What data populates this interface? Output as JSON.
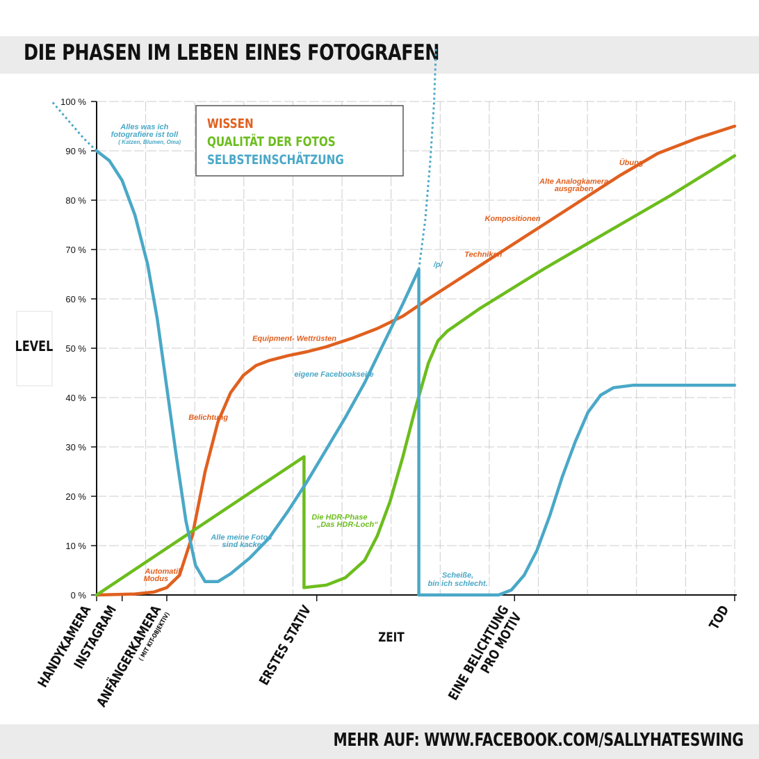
{
  "title": "DIE PHASEN IM LEBEN EINES FOTOGRAFEN",
  "footer": "MEHR AUF: WWW.FACEBOOK.COM/SALLYHATESWING",
  "colors": {
    "wissen": "#e0601f",
    "qualitaet": "#6cbd1d",
    "selbst": "#4aa8c7",
    "axis": "#111111",
    "grid": "#cccccc"
  },
  "chart_data": {
    "type": "line",
    "title": "DIE PHASEN IM LEBEN EINES FOTOGRAFEN",
    "xlabel": "ZEIT",
    "ylabel": "LEVEL",
    "ylim": [
      0,
      100
    ],
    "xlim": [
      0,
      100
    ],
    "yticks": [
      {
        "value": 0,
        "label": "0 %"
      },
      {
        "value": 10,
        "label": "10 %"
      },
      {
        "value": 20,
        "label": "20 %"
      },
      {
        "value": 30,
        "label": "30 %"
      },
      {
        "value": 40,
        "label": "40 %"
      },
      {
        "value": 50,
        "label": "50 %"
      },
      {
        "value": 60,
        "label": "60 %"
      },
      {
        "value": 70,
        "label": "70 %"
      },
      {
        "value": 80,
        "label": "80 %"
      },
      {
        "value": 90,
        "label": "90 %"
      },
      {
        "value": 100,
        "label": "100 %"
      }
    ],
    "xticks": [
      {
        "x": 0,
        "lines": [
          "HANDYKAMERA"
        ],
        "sub": ""
      },
      {
        "x": 4,
        "lines": [
          "INSTAGRAM"
        ],
        "sub": ""
      },
      {
        "x": 11,
        "lines": [
          "ANFÄNGERKAMERA"
        ],
        "sub": "( MIT KIT-OBJEKTIV)"
      },
      {
        "x": 34.5,
        "lines": [
          "ERSTES STATIV"
        ],
        "sub": ""
      },
      {
        "x": 65.5,
        "lines": [
          "EINE BELICHTUNG",
          "PRO MOTIV"
        ],
        "sub": ""
      },
      {
        "x": 100,
        "lines": [
          "TOD"
        ],
        "sub": ""
      }
    ],
    "legend": {
      "position": "top-left",
      "entries": [
        "WISSEN",
        "QUALITÄT DER FOTOS",
        "SELBSTEINSCHÄTZUNG"
      ]
    },
    "series": [
      {
        "name": "WISSEN",
        "points": [
          [
            0,
            0
          ],
          [
            6,
            0.2
          ],
          [
            9,
            0.6
          ],
          [
            11,
            1.5
          ],
          [
            13,
            4
          ],
          [
            15,
            12
          ],
          [
            17,
            25
          ],
          [
            19,
            35
          ],
          [
            21,
            41
          ],
          [
            23,
            44.5
          ],
          [
            25,
            46.5
          ],
          [
            27,
            47.5
          ],
          [
            30,
            48.5
          ],
          [
            33,
            49.3
          ],
          [
            36,
            50.3
          ],
          [
            40,
            52
          ],
          [
            44,
            54
          ],
          [
            48,
            56.5
          ],
          [
            52,
            60
          ],
          [
            58,
            65
          ],
          [
            64,
            70
          ],
          [
            70,
            75
          ],
          [
            76,
            80
          ],
          [
            82,
            85
          ],
          [
            88,
            89.5
          ],
          [
            94,
            92.5
          ],
          [
            100,
            95
          ]
        ]
      },
      {
        "name": "QUALITÄT DER FOTOS",
        "segments": [
          [
            [
              0,
              0
            ],
            [
              32.5,
              28
            ]
          ],
          [
            [
              32.5,
              28
            ],
            [
              32.5,
              1.5
            ]
          ],
          [
            [
              32.5,
              1.5
            ],
            [
              36,
              2
            ],
            [
              39,
              3.5
            ],
            [
              42,
              7
            ],
            [
              44,
              12
            ],
            [
              46,
              19
            ],
            [
              48,
              28
            ],
            [
              50,
              38
            ],
            [
              52,
              47
            ],
            [
              53.5,
              51.5
            ],
            [
              55,
              53.5
            ],
            [
              60,
              58
            ],
            [
              70,
              66
            ],
            [
              80,
              73.5
            ],
            [
              90,
              81
            ],
            [
              100,
              89
            ]
          ]
        ]
      },
      {
        "name": "SELBSTEINSCHÄTZUNG",
        "points": [
          [
            0,
            90
          ],
          [
            2,
            88
          ],
          [
            4,
            84
          ],
          [
            6,
            77
          ],
          [
            8,
            67
          ],
          [
            9.5,
            56
          ],
          [
            11,
            42
          ],
          [
            12.5,
            28
          ],
          [
            14,
            15
          ],
          [
            15.5,
            6
          ],
          [
            17,
            2.7
          ],
          [
            19,
            2.7
          ],
          [
            21,
            4.3
          ],
          [
            24,
            7.5
          ],
          [
            27,
            11.5
          ],
          [
            30,
            17
          ],
          [
            33,
            23
          ],
          [
            36,
            29.5
          ],
          [
            39,
            36
          ],
          [
            42,
            43
          ],
          [
            45,
            51
          ],
          [
            48,
            59
          ],
          [
            50.5,
            66
          ],
          [
            50.5,
            0
          ],
          [
            63,
            0
          ],
          [
            65,
            1
          ],
          [
            67,
            4
          ],
          [
            69,
            9
          ],
          [
            71,
            16
          ],
          [
            73,
            24
          ],
          [
            75,
            31
          ],
          [
            77,
            37
          ],
          [
            79,
            40.5
          ],
          [
            81,
            42
          ],
          [
            84,
            42.5
          ],
          [
            90,
            42.5
          ],
          [
            100,
            42.5
          ]
        ],
        "dotted_extensions": [
          [
            [
              0,
              90
            ],
            [
              -2,
              92.5
            ],
            [
              -4,
              95.5
            ],
            [
              -7,
              100
            ]
          ],
          [
            [
              50.5,
              66
            ],
            [
              51.5,
              76
            ],
            [
              52.3,
              88
            ],
            [
              52.9,
              100
            ],
            [
              53.2,
              111
            ]
          ]
        ]
      }
    ],
    "annotations": [
      {
        "text": "Alles was ich",
        "series": "SELBSTEINSCHÄTZUNG",
        "x": 7.5,
        "y": 94.4,
        "size": 11,
        "anchor": "middle"
      },
      {
        "text": "fotografiere ist toll",
        "series": "SELBSTEINSCHÄTZUNG",
        "x": 7.5,
        "y": 92.8,
        "size": 11,
        "anchor": "middle"
      },
      {
        "text": "( Katzen, Blumen, Oma)",
        "series": "SELBSTEINSCHÄTZUNG",
        "x": 8.3,
        "y": 91.4,
        "size": 8,
        "anchor": "middle"
      },
      {
        "text": "Belichtung",
        "series": "WISSEN",
        "x": 17.5,
        "y": 35.5,
        "size": 11,
        "anchor": "middle"
      },
      {
        "text": "Automatik",
        "series": "WISSEN",
        "x": 10.5,
        "y": 4.3,
        "size": 11,
        "anchor": "middle"
      },
      {
        "text": "Modus",
        "series": "WISSEN",
        "x": 9.3,
        "y": 2.8,
        "size": 11,
        "anchor": "middle"
      },
      {
        "text": "Equipment- Wettrüsten",
        "series": "WISSEN",
        "x": 31,
        "y": 51.5,
        "size": 11,
        "anchor": "middle"
      },
      {
        "text": "eigene Facebookseite",
        "series": "SELBSTEINSCHÄTZUNG",
        "x": 37.2,
        "y": 44.2,
        "size": 11,
        "anchor": "middle"
      },
      {
        "text": "Alle meine Fotos",
        "series": "SELBSTEINSCHÄTZUNG",
        "x": 22.7,
        "y": 11.2,
        "size": 11,
        "anchor": "middle"
      },
      {
        "text": "sind kacke.",
        "series": "SELBSTEINSCHÄTZUNG",
        "x": 22.9,
        "y": 9.7,
        "size": 11,
        "anchor": "middle"
      },
      {
        "text": "Die HDR-Phase",
        "series": "QUALITÄT DER FOTOS",
        "x": 33.7,
        "y": 15.3,
        "size": 11,
        "anchor": "start"
      },
      {
        "text": "„Das HDR-Loch“",
        "series": "QUALITÄT DER FOTOS",
        "x": 34.5,
        "y": 13.8,
        "size": 11,
        "anchor": "start"
      },
      {
        "text": "/p/",
        "series": "SELBSTEINSCHÄTZUNG",
        "x": 52.8,
        "y": 66.5,
        "size": 11,
        "anchor": "start"
      },
      {
        "text": "Techniken",
        "series": "WISSEN",
        "x": 60.6,
        "y": 68.5,
        "size": 11,
        "anchor": "middle"
      },
      {
        "text": "Kompositionen",
        "series": "WISSEN",
        "x": 65.2,
        "y": 75.8,
        "size": 11,
        "anchor": "middle"
      },
      {
        "text": "Alte Analogkamera",
        "series": "WISSEN",
        "x": 74.8,
        "y": 83.3,
        "size": 11,
        "anchor": "middle"
      },
      {
        "text": "ausgraben",
        "series": "WISSEN",
        "x": 74.8,
        "y": 81.8,
        "size": 11,
        "anchor": "middle"
      },
      {
        "text": "Übung",
        "series": "WISSEN",
        "x": 83.8,
        "y": 87.1,
        "size": 11,
        "anchor": "middle"
      },
      {
        "text": "Scheiße,",
        "series": "SELBSTEINSCHÄTZUNG",
        "x": 56.6,
        "y": 3.5,
        "size": 11,
        "anchor": "middle"
      },
      {
        "text": "bin ich schlecht.",
        "series": "SELBSTEINSCHÄTZUNG",
        "x": 56.6,
        "y": 1.8,
        "size": 11,
        "anchor": "middle"
      }
    ]
  }
}
